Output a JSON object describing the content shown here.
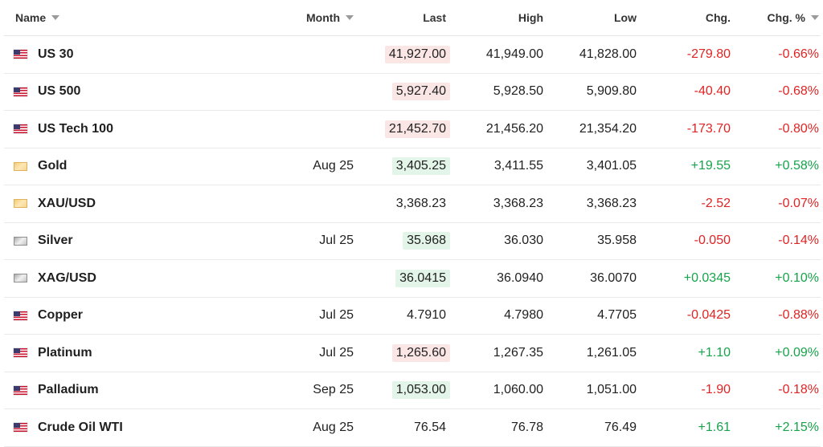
{
  "header": {
    "name": "Name",
    "month": "Month",
    "last": "Last",
    "high": "High",
    "low": "Low",
    "chg": "Chg.",
    "chg_pct": "Chg. %"
  },
  "colors": {
    "negative": "#e02424",
    "positive": "#16a34a",
    "flash_down": "#fbe6e6",
    "flash_up": "#e3f4e8"
  },
  "rows": [
    {
      "icon": "us-flag-icon",
      "name": "US 30",
      "month": "",
      "last": "41,927.00",
      "last_flash": "down",
      "high": "41,949.00",
      "low": "41,828.00",
      "chg": "-279.80",
      "chg_pct": "-0.66%",
      "dir": "neg"
    },
    {
      "icon": "us-flag-icon",
      "name": "US 500",
      "month": "",
      "last": "5,927.40",
      "last_flash": "down",
      "high": "5,928.50",
      "low": "5,909.80",
      "chg": "-40.40",
      "chg_pct": "-0.68%",
      "dir": "neg"
    },
    {
      "icon": "us-flag-icon",
      "name": "US Tech 100",
      "month": "",
      "last": "21,452.70",
      "last_flash": "down",
      "high": "21,456.20",
      "low": "21,354.20",
      "chg": "-173.70",
      "chg_pct": "-0.80%",
      "dir": "neg"
    },
    {
      "icon": "gold-icon",
      "name": "Gold",
      "month": "Aug 25",
      "last": "3,405.25",
      "last_flash": "up",
      "high": "3,411.55",
      "low": "3,401.05",
      "chg": "+19.55",
      "chg_pct": "+0.58%",
      "dir": "pos"
    },
    {
      "icon": "gold-icon",
      "name": "XAU/USD",
      "month": "",
      "last": "3,368.23",
      "last_flash": "flat",
      "high": "3,368.23",
      "low": "3,368.23",
      "chg": "-2.52",
      "chg_pct": "-0.07%",
      "dir": "neg"
    },
    {
      "icon": "silver-icon",
      "name": "Silver",
      "month": "Jul 25",
      "last": "35.968",
      "last_flash": "up",
      "high": "36.030",
      "low": "35.958",
      "chg": "-0.050",
      "chg_pct": "-0.14%",
      "dir": "neg"
    },
    {
      "icon": "silver-icon",
      "name": "XAG/USD",
      "month": "",
      "last": "36.0415",
      "last_flash": "up",
      "high": "36.0940",
      "low": "36.0070",
      "chg": "+0.0345",
      "chg_pct": "+0.10%",
      "dir": "pos"
    },
    {
      "icon": "us-flag-icon",
      "name": "Copper",
      "month": "Jul 25",
      "last": "4.7910",
      "last_flash": "flat",
      "high": "4.7980",
      "low": "4.7705",
      "chg": "-0.0425",
      "chg_pct": "-0.88%",
      "dir": "neg"
    },
    {
      "icon": "us-flag-icon",
      "name": "Platinum",
      "month": "Jul 25",
      "last": "1,265.60",
      "last_flash": "down",
      "high": "1,267.35",
      "low": "1,261.05",
      "chg": "+1.10",
      "chg_pct": "+0.09%",
      "dir": "pos"
    },
    {
      "icon": "us-flag-icon",
      "name": "Palladium",
      "month": "Sep 25",
      "last": "1,053.00",
      "last_flash": "up",
      "high": "1,060.00",
      "low": "1,051.00",
      "chg": "-1.90",
      "chg_pct": "-0.18%",
      "dir": "neg"
    },
    {
      "icon": "us-flag-icon",
      "name": "Crude Oil WTI",
      "month": "Aug 25",
      "last": "76.54",
      "last_flash": "flat",
      "high": "76.78",
      "low": "76.49",
      "chg": "+1.61",
      "chg_pct": "+2.15%",
      "dir": "pos"
    }
  ]
}
